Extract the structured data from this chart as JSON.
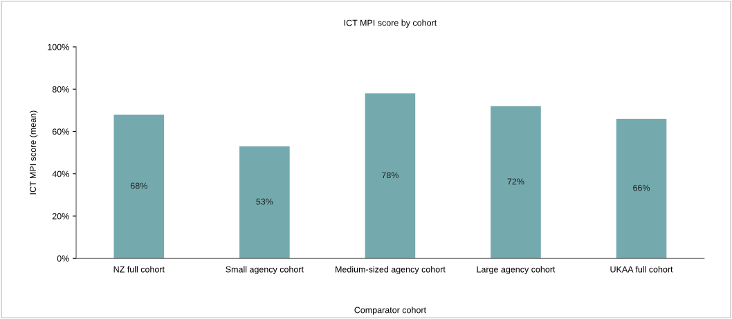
{
  "chart_data": {
    "type": "bar",
    "title": "ICT MPI score by cohort",
    "xlabel": "Comparator cohort",
    "ylabel": "ICT MPI score (mean)",
    "categories": [
      "NZ full cohort",
      "Small agency cohort",
      "Medium-sized agency cohort",
      "Large agency cohort",
      "UKAA full cohort"
    ],
    "values": [
      68,
      53,
      78,
      72,
      66
    ],
    "value_labels": [
      "68%",
      "53%",
      "78%",
      "72%",
      "66%"
    ],
    "color": "#74aaae",
    "ylim": [
      0,
      100
    ],
    "yticks": [
      {
        "value": 0,
        "label": "0%"
      },
      {
        "value": 20,
        "label": "20%"
      },
      {
        "value": 40,
        "label": "40%"
      },
      {
        "value": 60,
        "label": "60%"
      },
      {
        "value": 80,
        "label": "80%"
      },
      {
        "value": 100,
        "label": "100%"
      }
    ],
    "grid": false,
    "legend": false
  }
}
